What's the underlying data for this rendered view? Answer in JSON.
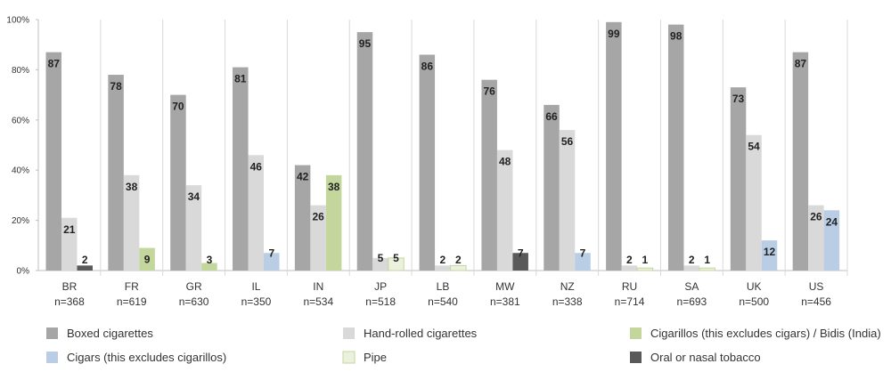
{
  "chart_data": {
    "type": "bar",
    "ylim": [
      0,
      100
    ],
    "yticks": [
      "0%",
      "20%",
      "40%",
      "60%",
      "80%",
      "100%"
    ],
    "categories": [
      "BR",
      "FR",
      "GR",
      "IL",
      "IN",
      "JP",
      "LB",
      "MW",
      "NZ",
      "RU",
      "SA",
      "UK",
      "US"
    ],
    "category_n": [
      "n=368",
      "n=619",
      "n=630",
      "n=350",
      "n=534",
      "n=518",
      "n=540",
      "n=381",
      "n=338",
      "n=714",
      "n=693",
      "n=500",
      "n=456"
    ],
    "series": [
      {
        "name": "Boxed cigarettes",
        "color": "#a6a6a6",
        "fill": "#a6a6a6",
        "stroke": "none",
        "values": [
          87,
          78,
          70,
          81,
          42,
          95,
          86,
          76,
          66,
          99,
          98,
          73,
          87
        ]
      },
      {
        "name": "Hand-rolled cigarettes",
        "color": "#d9d9d9",
        "fill": "#d9d9d9",
        "stroke": "none",
        "values": [
          21,
          38,
          34,
          46,
          26,
          5,
          2,
          48,
          56,
          2,
          2,
          54,
          26
        ]
      },
      {
        "name": "Cigarillos (this excludes cigars) / Bidis (India)",
        "color": "#c3d69b",
        "fill": "#c3d69b",
        "stroke": "none",
        "values": [
          null,
          9,
          3,
          null,
          38,
          null,
          null,
          null,
          null,
          null,
          null,
          null,
          null
        ]
      },
      {
        "name": "Cigars (this excludes cigarillos)",
        "color": "#b9cde5",
        "fill": "#b9cde5",
        "stroke": "none",
        "values": [
          null,
          null,
          null,
          7,
          null,
          null,
          null,
          null,
          7,
          null,
          null,
          12,
          24
        ]
      },
      {
        "name": "Pipe",
        "color": "#ebf1de",
        "fill": "#ebf1de",
        "stroke": "#c3d69b",
        "values": [
          null,
          null,
          null,
          null,
          null,
          5,
          2,
          null,
          null,
          1,
          1,
          null,
          null
        ]
      },
      {
        "name": "Oral or nasal tobacco",
        "color": "#595959",
        "fill": "#595959",
        "stroke": "none",
        "values": [
          2,
          null,
          null,
          null,
          null,
          null,
          null,
          7,
          null,
          null,
          null,
          null,
          null
        ]
      }
    ],
    "labels": [
      [
        {
          "s": 0,
          "v": 87
        },
        {
          "s": 1,
          "v": 21
        },
        {
          "s": 5,
          "v": 2
        }
      ],
      [
        {
          "s": 0,
          "v": 78
        },
        {
          "s": 1,
          "v": 38
        },
        {
          "s": 2,
          "v": 9
        }
      ],
      [
        {
          "s": 0,
          "v": 70
        },
        {
          "s": 1,
          "v": 34
        },
        {
          "s": 2,
          "v": 3
        }
      ],
      [
        {
          "s": 0,
          "v": 81
        },
        {
          "s": 1,
          "v": 46
        },
        {
          "s": 3,
          "v": 7
        }
      ],
      [
        {
          "s": 0,
          "v": 42
        },
        {
          "s": 2,
          "v": 38
        },
        {
          "s": 1,
          "v": 26
        }
      ],
      [
        {
          "s": 0,
          "v": 95
        },
        {
          "s": 4,
          "v": 5
        },
        {
          "s": 1,
          "v": 5
        }
      ],
      [
        {
          "s": 0,
          "v": 86
        },
        {
          "s": 4,
          "v": 2
        },
        {
          "s": 1,
          "v": 2
        }
      ],
      [
        {
          "s": 0,
          "v": 76
        },
        {
          "s": 1,
          "v": 48
        },
        {
          "s": 5,
          "v": 7
        }
      ],
      [
        {
          "s": 0,
          "v": 66
        },
        {
          "s": 1,
          "v": 56
        },
        {
          "s": 3,
          "v": 7
        }
      ],
      [
        {
          "s": 0,
          "v": 99
        },
        {
          "s": 1,
          "v": 2
        },
        {
          "s": 4,
          "v": 1
        }
      ],
      [
        {
          "s": 0,
          "v": 98
        },
        {
          "s": 1,
          "v": 2
        },
        {
          "s": 4,
          "v": 1
        }
      ],
      [
        {
          "s": 0,
          "v": 73
        },
        {
          "s": 1,
          "v": 54
        },
        {
          "s": 3,
          "v": 12
        }
      ],
      [
        {
          "s": 0,
          "v": 87
        },
        {
          "s": 1,
          "v": 26
        },
        {
          "s": 3,
          "v": 24
        }
      ]
    ],
    "legend_placement": "bottom",
    "grid": false
  }
}
